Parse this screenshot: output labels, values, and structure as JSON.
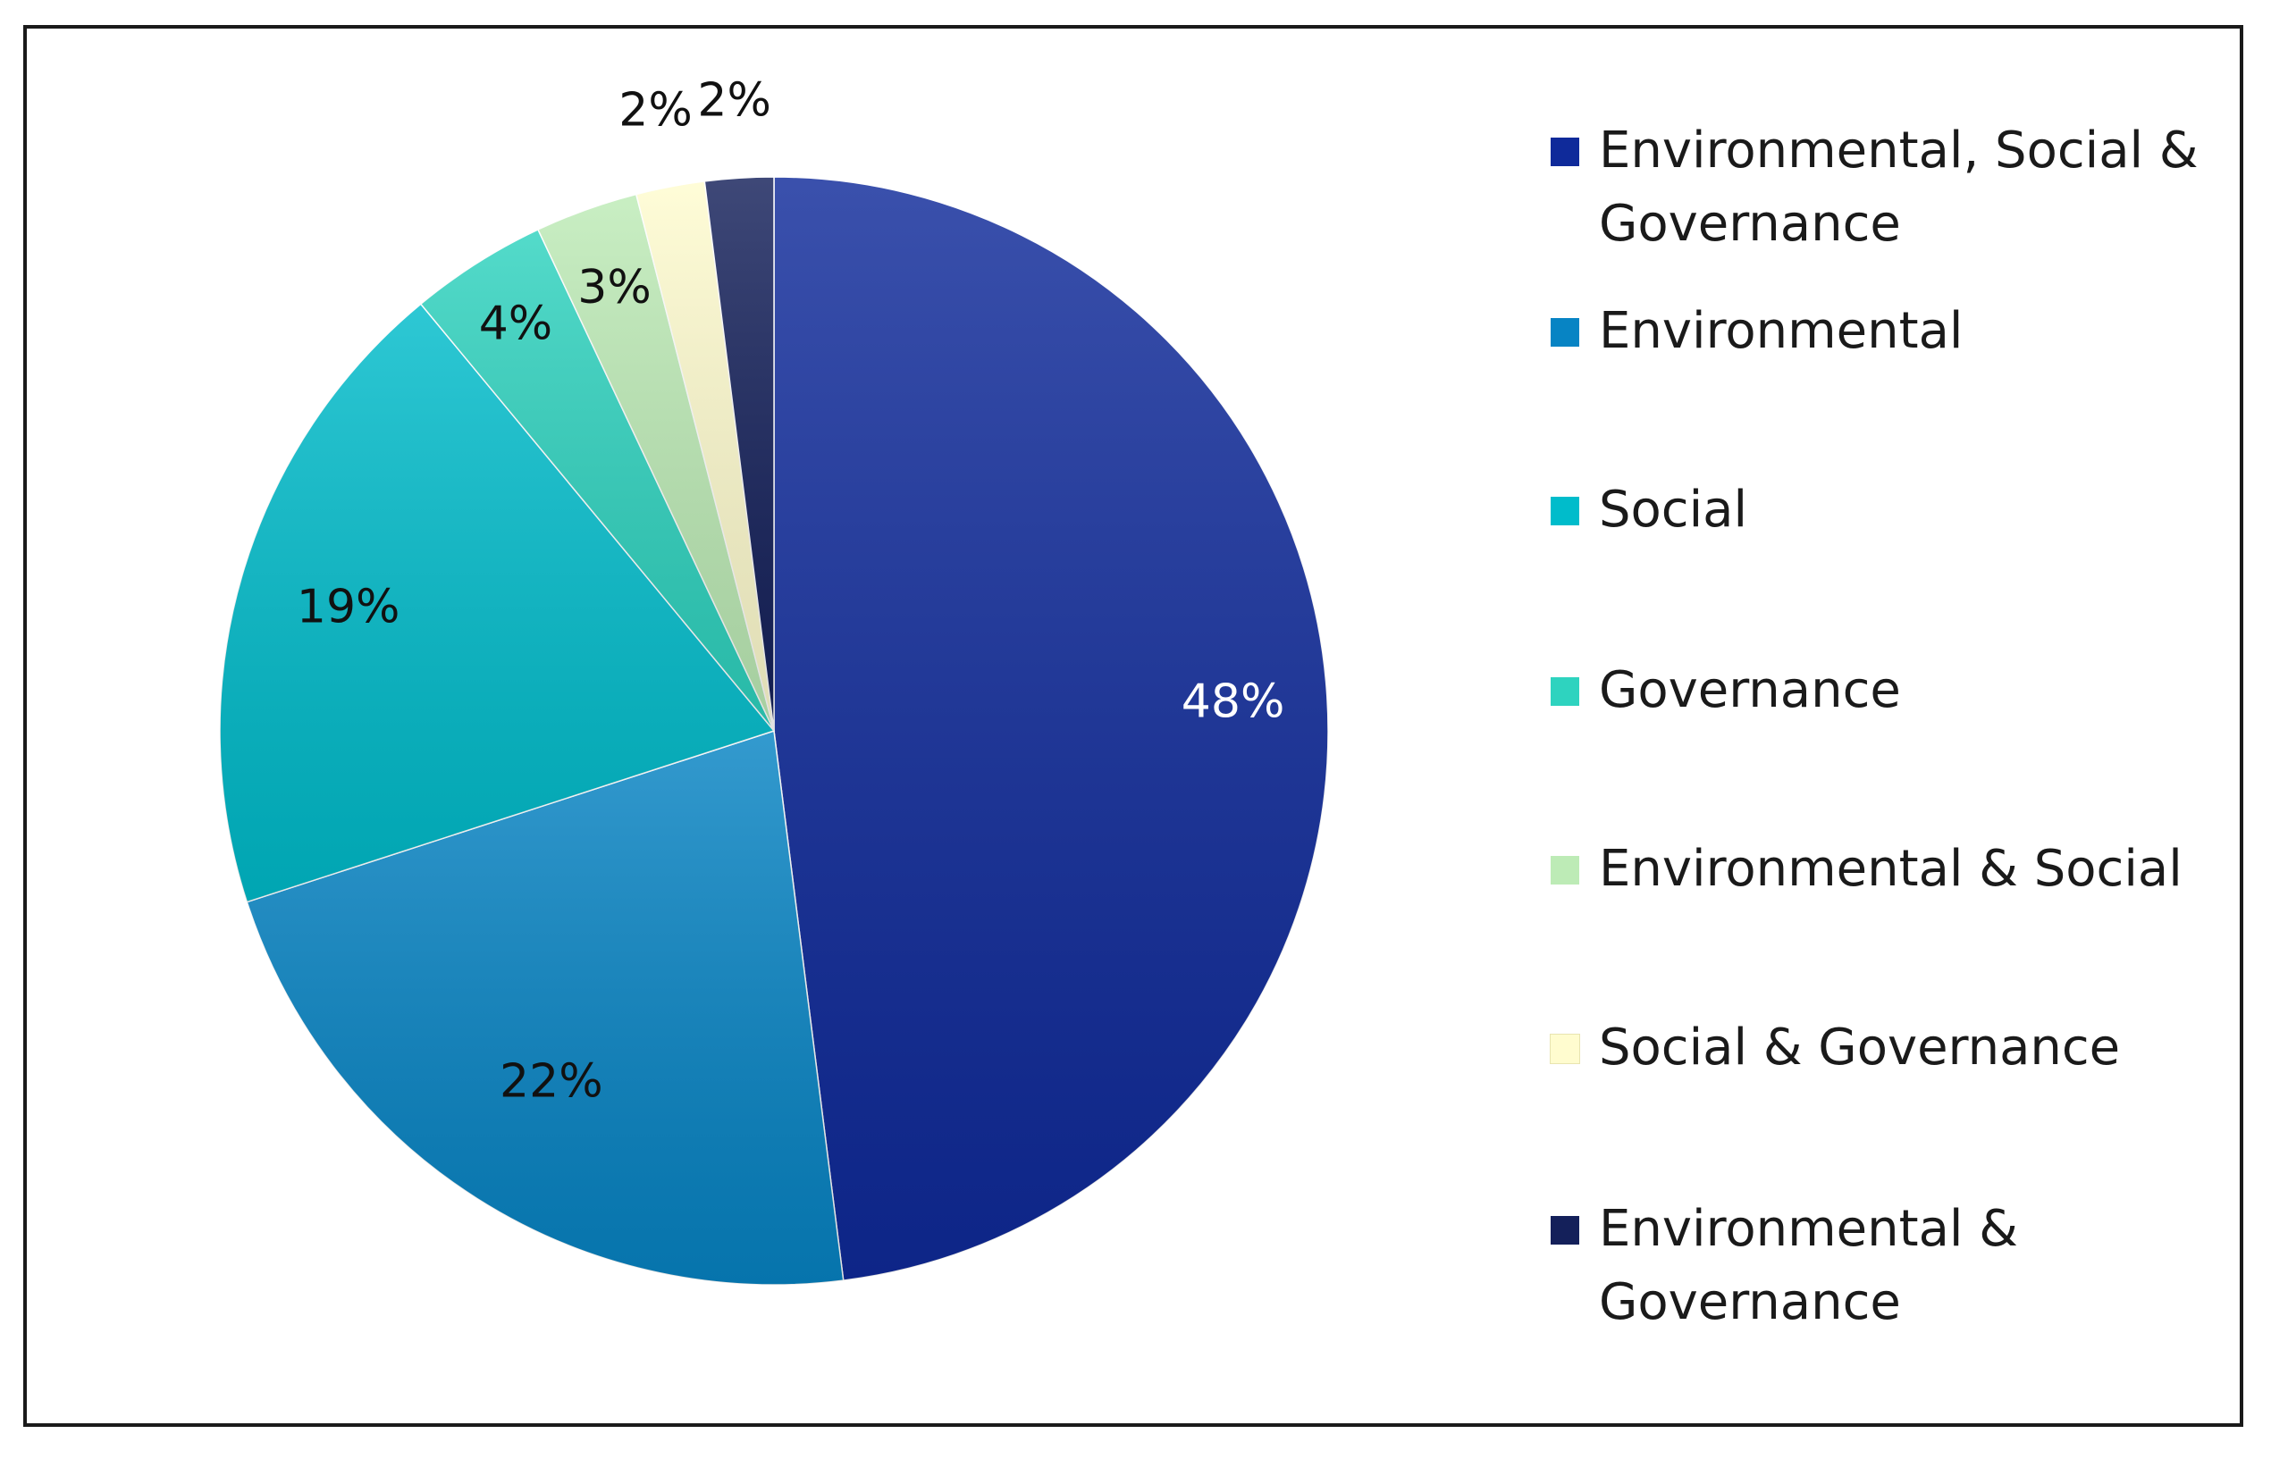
{
  "chart_data": {
    "type": "pie",
    "title": "",
    "start_angle_deg": 0,
    "direction": "clockwise",
    "slices": [
      {
        "name": "Environmental, Social & Governance",
        "value": 48,
        "label": "48%",
        "color": "#0f2a9a",
        "label_color": "#ffffff"
      },
      {
        "name": "Environmental",
        "value": 22,
        "label": "22%",
        "color": "#0784c4",
        "label_color": "#111111"
      },
      {
        "name": "Social",
        "value": 19,
        "label": "19%",
        "color": "#00bccb",
        "label_color": "#111111"
      },
      {
        "name": "Governance",
        "value": 4,
        "label": "4%",
        "color": "#2ed3bf",
        "label_color": "#111111"
      },
      {
        "name": "Environmental & Social",
        "value": 3,
        "label": "3%",
        "color": "#bdebb6",
        "label_color": "#111111"
      },
      {
        "name": "Social & Governance",
        "value": 2,
        "label": "2%",
        "color": "#fffccf",
        "label_color": "#111111"
      },
      {
        "name": "Environmental & Governance",
        "value": 2,
        "label": "2%",
        "color": "#14205a",
        "label_color": "#111111"
      }
    ],
    "legend_position": "right"
  }
}
